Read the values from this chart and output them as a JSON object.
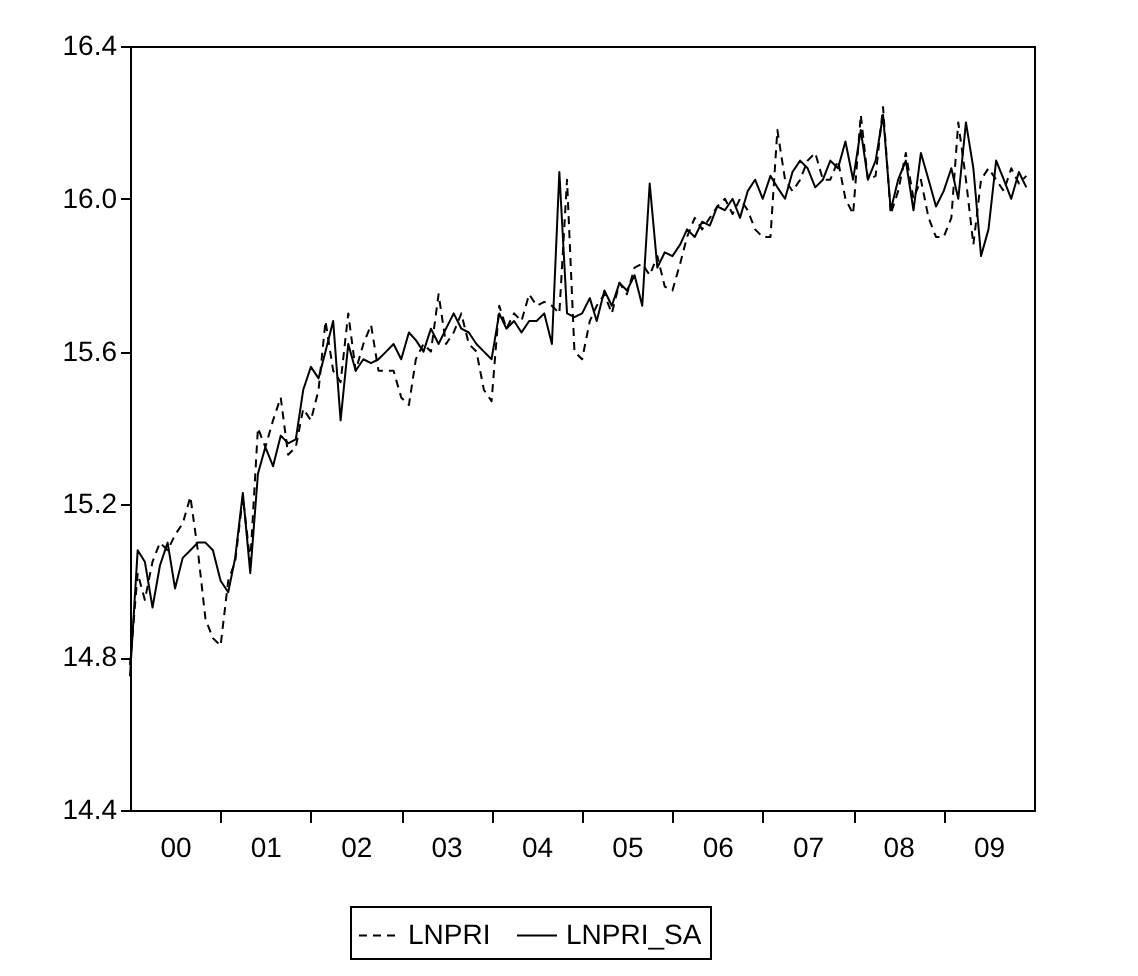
{
  "chart_data": {
    "type": "line",
    "xlim": [
      "2000-01",
      "2010-01"
    ],
    "xticks": [
      {
        "value": "2000-07",
        "label": "00"
      },
      {
        "value": "2001-01",
        "label": null
      },
      {
        "value": "2001-07",
        "label": "01"
      },
      {
        "value": "2002-01",
        "label": null
      },
      {
        "value": "2002-07",
        "label": "02"
      },
      {
        "value": "2003-01",
        "label": null
      },
      {
        "value": "2003-07",
        "label": "03"
      },
      {
        "value": "2004-01",
        "label": null
      },
      {
        "value": "2004-07",
        "label": "04"
      },
      {
        "value": "2005-01",
        "label": null
      },
      {
        "value": "2005-07",
        "label": "05"
      },
      {
        "value": "2006-01",
        "label": null
      },
      {
        "value": "2006-07",
        "label": "06"
      },
      {
        "value": "2007-01",
        "label": null
      },
      {
        "value": "2007-07",
        "label": "07"
      },
      {
        "value": "2008-01",
        "label": null
      },
      {
        "value": "2008-07",
        "label": "08"
      },
      {
        "value": "2009-01",
        "label": null
      },
      {
        "value": "2009-07",
        "label": "09"
      }
    ],
    "ylim": [
      14.4,
      16.4
    ],
    "yticks": [
      {
        "value": 14.4,
        "label": "14.4"
      },
      {
        "value": 14.8,
        "label": "14.8"
      },
      {
        "value": 15.2,
        "label": "15.2"
      },
      {
        "value": 15.6,
        "label": "15.6"
      },
      {
        "value": 16.0,
        "label": "16.0"
      },
      {
        "value": 16.4,
        "label": "16.4"
      }
    ],
    "grid": false,
    "legend": "bottom",
    "marker": "none",
    "x": [
      "2000-01",
      "2000-02",
      "2000-03",
      "2000-04",
      "2000-05",
      "2000-06",
      "2000-07",
      "2000-08",
      "2000-09",
      "2000-10",
      "2000-11",
      "2000-12",
      "2001-01",
      "2001-02",
      "2001-03",
      "2001-04",
      "2001-05",
      "2001-06",
      "2001-07",
      "2001-08",
      "2001-09",
      "2001-10",
      "2001-11",
      "2001-12",
      "2002-01",
      "2002-02",
      "2002-03",
      "2002-04",
      "2002-05",
      "2002-06",
      "2002-07",
      "2002-08",
      "2002-09",
      "2002-10",
      "2002-11",
      "2002-12",
      "2003-01",
      "2003-02",
      "2003-03",
      "2003-04",
      "2003-05",
      "2003-06",
      "2003-07",
      "2003-08",
      "2003-09",
      "2003-10",
      "2003-11",
      "2003-12",
      "2004-01",
      "2004-02",
      "2004-03",
      "2004-04",
      "2004-05",
      "2004-06",
      "2004-07",
      "2004-08",
      "2004-09",
      "2004-10",
      "2004-11",
      "2004-12",
      "2005-01",
      "2005-02",
      "2005-03",
      "2005-04",
      "2005-05",
      "2005-06",
      "2005-07",
      "2005-08",
      "2005-09",
      "2005-10",
      "2005-11",
      "2005-12",
      "2006-01",
      "2006-02",
      "2006-03",
      "2006-04",
      "2006-05",
      "2006-06",
      "2006-07",
      "2006-08",
      "2006-09",
      "2006-10",
      "2006-11",
      "2006-12",
      "2007-01",
      "2007-02",
      "2007-03",
      "2007-04",
      "2007-05",
      "2007-06",
      "2007-07",
      "2007-08",
      "2007-09",
      "2007-10",
      "2007-11",
      "2007-12",
      "2008-01",
      "2008-02",
      "2008-03",
      "2008-04",
      "2008-05",
      "2008-06",
      "2008-07",
      "2008-08",
      "2008-09",
      "2008-10",
      "2008-11",
      "2008-12",
      "2009-01",
      "2009-02",
      "2009-03",
      "2009-04",
      "2009-05",
      "2009-06",
      "2009-07",
      "2009-08",
      "2009-09",
      "2009-10",
      "2009-11",
      "2009-12"
    ],
    "series": [
      {
        "name": "LNPRI",
        "color": "#000000",
        "line_style": "dashed",
        "values": [
          14.78,
          15.02,
          14.95,
          15.05,
          15.1,
          15.08,
          15.12,
          15.15,
          15.22,
          15.08,
          14.9,
          14.85,
          14.83,
          15.0,
          15.05,
          15.22,
          15.05,
          15.4,
          15.35,
          15.42,
          15.48,
          15.33,
          15.35,
          15.45,
          15.42,
          15.5,
          15.68,
          15.55,
          15.52,
          15.7,
          15.55,
          15.62,
          15.67,
          15.55,
          15.55,
          15.55,
          15.48,
          15.46,
          15.58,
          15.62,
          15.6,
          15.75,
          15.62,
          15.65,
          15.7,
          15.62,
          15.6,
          15.5,
          15.47,
          15.72,
          15.66,
          15.7,
          15.68,
          15.75,
          15.72,
          15.73,
          15.72,
          15.7,
          16.05,
          15.6,
          15.58,
          15.68,
          15.72,
          15.75,
          15.7,
          15.78,
          15.75,
          15.82,
          15.83,
          15.8,
          15.85,
          15.77,
          15.76,
          15.83,
          15.9,
          15.95,
          15.92,
          15.95,
          15.98,
          16.0,
          15.96,
          16.0,
          15.97,
          15.92,
          15.9,
          15.9,
          16.18,
          16.05,
          16.02,
          16.05,
          16.1,
          16.12,
          16.05,
          16.05,
          16.1,
          16.0,
          15.96,
          16.22,
          16.05,
          16.06,
          16.24,
          15.96,
          16.02,
          16.12,
          16.0,
          16.05,
          15.95,
          15.9,
          15.9,
          15.95,
          16.2,
          16.05,
          15.88,
          16.05,
          16.08,
          16.05,
          16.02,
          16.08,
          16.04,
          16.06
        ]
      },
      {
        "name": "LNPRI_SA",
        "color": "#000000",
        "line_style": "solid",
        "values": [
          14.75,
          15.08,
          15.05,
          14.93,
          15.04,
          15.1,
          14.98,
          15.06,
          15.08,
          15.1,
          15.1,
          15.08,
          15.0,
          14.97,
          15.06,
          15.23,
          15.02,
          15.28,
          15.35,
          15.3,
          15.38,
          15.36,
          15.37,
          15.5,
          15.56,
          15.53,
          15.6,
          15.68,
          15.42,
          15.62,
          15.55,
          15.58,
          15.57,
          15.58,
          15.6,
          15.62,
          15.58,
          15.65,
          15.63,
          15.6,
          15.66,
          15.62,
          15.66,
          15.7,
          15.66,
          15.65,
          15.62,
          15.6,
          15.58,
          15.7,
          15.66,
          15.68,
          15.65,
          15.68,
          15.68,
          15.7,
          15.62,
          16.07,
          15.7,
          15.69,
          15.7,
          15.74,
          15.68,
          15.76,
          15.72,
          15.78,
          15.76,
          15.8,
          15.72,
          16.04,
          15.82,
          15.86,
          15.85,
          15.88,
          15.92,
          15.9,
          15.94,
          15.93,
          15.98,
          15.97,
          16.0,
          15.95,
          16.02,
          16.05,
          16.0,
          16.06,
          16.03,
          16.0,
          16.07,
          16.1,
          16.08,
          16.03,
          16.05,
          16.1,
          16.08,
          16.15,
          16.05,
          16.18,
          16.05,
          16.1,
          16.22,
          15.97,
          16.05,
          16.1,
          15.97,
          16.12,
          16.05,
          15.98,
          16.02,
          16.08,
          16.0,
          16.2,
          16.08,
          15.85,
          15.92,
          16.1,
          16.05,
          16.0,
          16.07,
          16.03
        ]
      }
    ]
  }
}
